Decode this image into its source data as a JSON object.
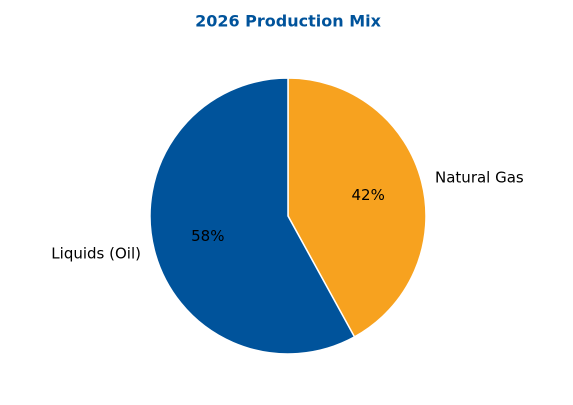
{
  "chart_data": {
    "type": "pie",
    "title": "2026 Production Mix",
    "categories": [
      "Natural Gas",
      "Liquids (Oil)"
    ],
    "values": [
      42,
      58
    ],
    "value_labels": [
      "42%",
      "58%"
    ],
    "colors": [
      "#f7a21f",
      "#00539b"
    ]
  }
}
